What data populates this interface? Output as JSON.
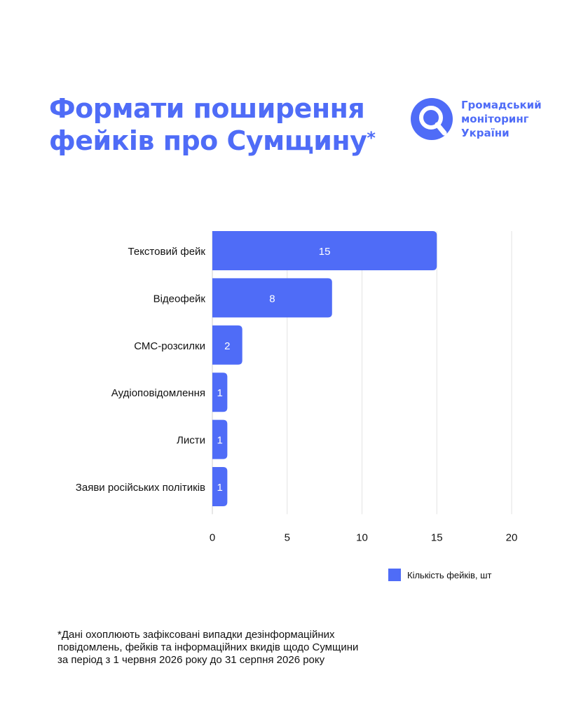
{
  "title": {
    "line1": "Формати поширення",
    "line2": "фейків про Сумщину",
    "asterisk": "*"
  },
  "logo": {
    "line1": "Громадський",
    "line2": "моніторинг",
    "line3": "України"
  },
  "chart_data": {
    "type": "bar",
    "orientation": "horizontal",
    "categories": [
      "Текстовий фейк",
      "Відеофейк",
      "СМС-розсилки",
      "Аудіоповідомлення",
      "Листи",
      "Заяви російських політиків"
    ],
    "series": [
      {
        "name": "Кількість фейків, шт",
        "values": [
          15,
          8,
          2,
          1,
          1,
          1
        ]
      }
    ],
    "xlim": [
      0,
      20
    ],
    "xticks": [
      "0",
      "5",
      "10",
      "15",
      "20"
    ],
    "grid": true,
    "legend": "bottom-right",
    "bar_color": "#4f6cf7",
    "grid_color": "#e3e3e3"
  },
  "footnote": {
    "line1": "*Дані охоплюють зафіксовані випадки дезінформаційних",
    "line2": "повідомлень, фейків та інформаційних вкидів щодо Сумщини",
    "line3": "за період з 1 червня 2026 року до 31 серпня 2026 року"
  }
}
